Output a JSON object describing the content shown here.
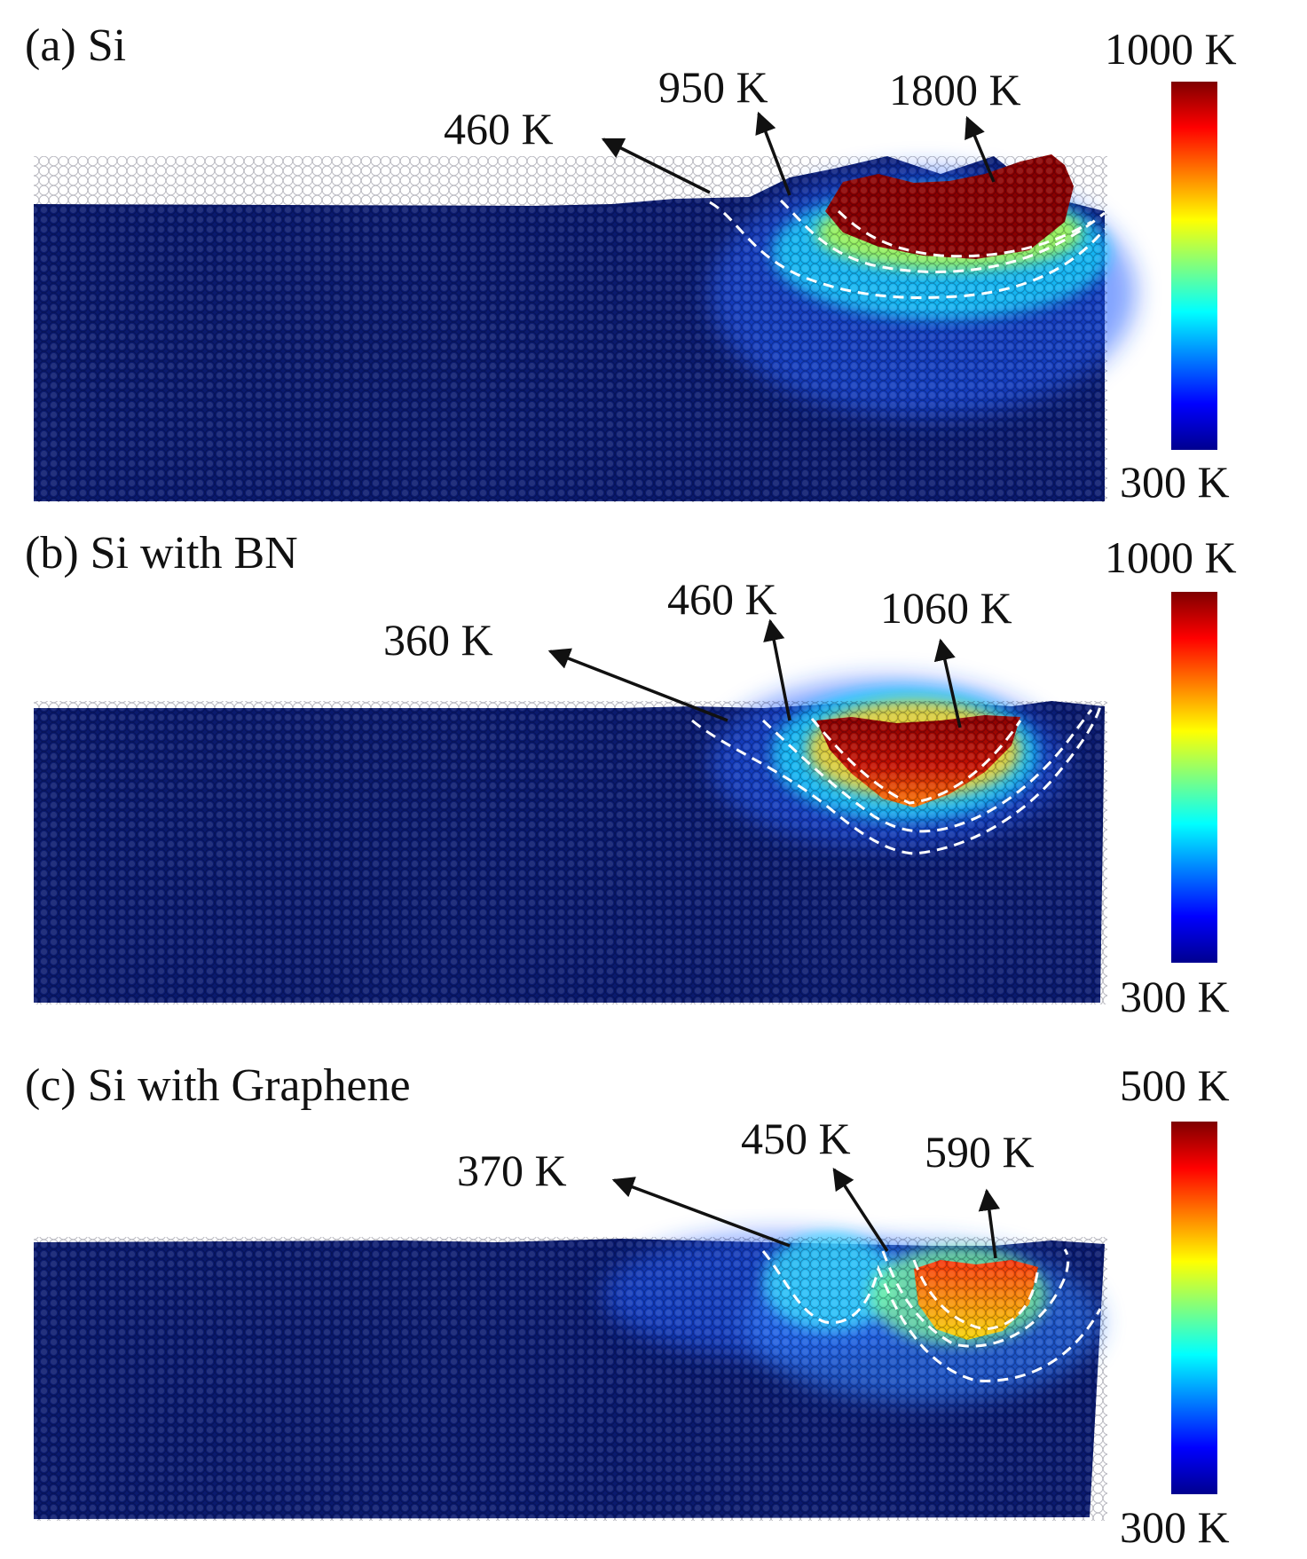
{
  "colormap": [
    "#00008f",
    "#0000ff",
    "#007fff",
    "#00ffff",
    "#7fff7f",
    "#ffff00",
    "#ff7f00",
    "#ff0000",
    "#7f0000"
  ],
  "substrate_color": "#0a1a6e",
  "boundary_color": "#ffffff",
  "panels": [
    {
      "title": "(a) Si",
      "colorbar": {
        "max_label": "1000 K",
        "min_label": "300 K"
      },
      "annotations": [
        {
          "text": "460 K"
        },
        {
          "text": "950 K"
        },
        {
          "text": "1800 K"
        }
      ]
    },
    {
      "title": "(b) Si with BN",
      "colorbar": {
        "max_label": "1000 K",
        "min_label": "300 K"
      },
      "annotations": [
        {
          "text": "360 K"
        },
        {
          "text": "460 K"
        },
        {
          "text": "1060 K"
        }
      ]
    },
    {
      "title": "(c) Si with Graphene",
      "colorbar": {
        "max_label": "500 K",
        "min_label": "300 K"
      },
      "annotations": [
        {
          "text": "370 K"
        },
        {
          "text": "450 K"
        },
        {
          "text": "590 K"
        }
      ]
    }
  ]
}
